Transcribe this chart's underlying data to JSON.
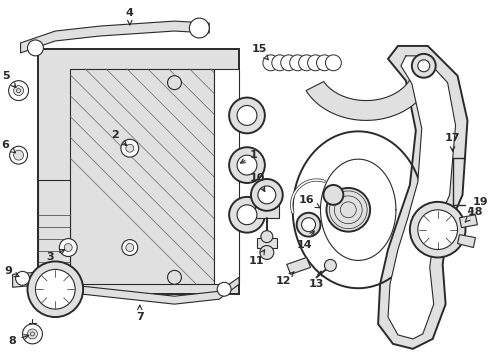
{
  "bg_color": "#ffffff",
  "line_color": "#2a2a2a",
  "fill_light": "#e0e0e0",
  "fill_white": "#ffffff",
  "lw_thick": 2.2,
  "lw_mid": 1.4,
  "lw_thin": 0.8,
  "figsize": [
    4.89,
    3.6
  ],
  "dpi": 100
}
